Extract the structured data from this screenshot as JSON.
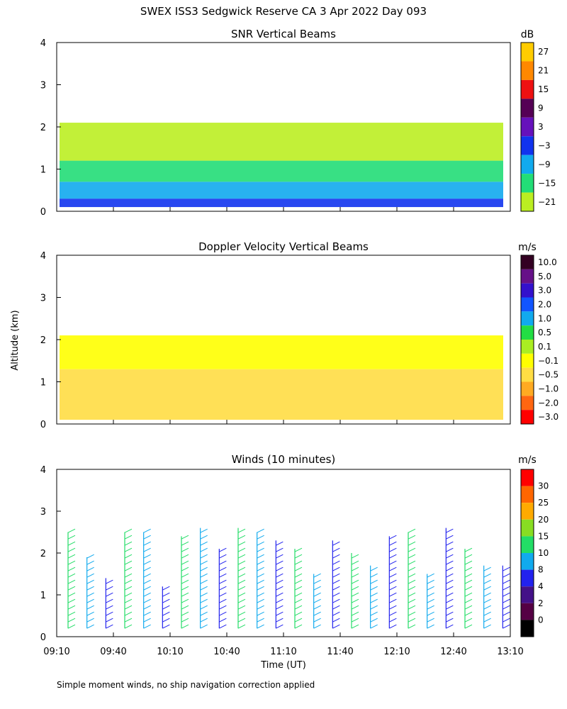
{
  "page_title": "SWEX ISS3 Sedgwick Reserve CA   3 Apr 2022 Day 093",
  "shared_axes": {
    "ylabel": "Altitude (km)",
    "xlabel": "Time (UT)",
    "x_ticks": [
      "09:10",
      "09:40",
      "10:10",
      "10:40",
      "11:10",
      "11:40",
      "12:10",
      "12:40",
      "13:10"
    ],
    "y_ticks": [
      "0",
      "1",
      "2",
      "3",
      "4"
    ]
  },
  "footnote": "Simple moment winds, no ship navigation correction applied",
  "chart_data": [
    {
      "type": "heatmap",
      "title": "SNR Vertical Beams",
      "ylim": [
        0,
        4
      ],
      "colorbar": {
        "unit": "dB",
        "labels": [
          "27",
          "21",
          "15",
          "9",
          "3",
          "−3",
          "−9",
          "−15",
          "−21"
        ],
        "colors": [
          "#ffcc00",
          "#ff8800",
          "#ee1111",
          "#550055",
          "#6611bb",
          "#1133ee",
          "#11aaee",
          "#22dd77",
          "#bbee22"
        ]
      },
      "layers": [
        {
          "from_km": 0.1,
          "to_km": 0.3,
          "level": "-3"
        },
        {
          "from_km": 0.3,
          "to_km": 0.7,
          "level": "-9"
        },
        {
          "from_km": 0.7,
          "to_km": 1.2,
          "level": "-15"
        },
        {
          "from_km": 1.2,
          "to_km": 2.1,
          "level": "-21"
        }
      ]
    },
    {
      "type": "heatmap",
      "title": "Doppler Velocity Vertical Beams",
      "ylim": [
        0,
        4
      ],
      "colorbar": {
        "unit": "m/s",
        "labels": [
          "10.0",
          "5.0",
          "3.0",
          "2.0",
          "1.0",
          "0.5",
          "0.1",
          "−0.1",
          "−0.5",
          "−1.0",
          "−2.0",
          "−3.0"
        ],
        "colors": [
          "#330022",
          "#661188",
          "#3311cc",
          "#1155ff",
          "#11aaee",
          "#22dd44",
          "#aaee22",
          "#ffff00",
          "#ffdd44",
          "#ffaa22",
          "#ff6611",
          "#ff0000"
        ]
      },
      "layers": [
        {
          "from_km": 0.1,
          "to_km": 1.3,
          "level": "-0.5"
        },
        {
          "from_km": 1.3,
          "to_km": 2.1,
          "level": "-0.1"
        }
      ]
    },
    {
      "type": "wind_barbs",
      "title": "Winds (10 minutes)",
      "ylim": [
        0,
        4
      ],
      "colorbar": {
        "unit": "m/s",
        "labels": [
          "30",
          "25",
          "20",
          "15",
          "10",
          "8",
          "4",
          "2",
          "0"
        ],
        "colors": [
          "#ff0000",
          "#ff6600",
          "#ffaa00",
          "#88dd22",
          "#22dd66",
          "#11aaee",
          "#2222ee",
          "#441188",
          "#550044",
          "#000000"
        ]
      },
      "profiles": [
        {
          "time": "09:16",
          "top_km": 2.5
        },
        {
          "time": "09:26",
          "top_km": 1.9
        },
        {
          "time": "09:36",
          "top_km": 1.4
        },
        {
          "time": "09:46",
          "top_km": 2.5
        },
        {
          "time": "09:56",
          "top_km": 2.5
        },
        {
          "time": "10:06",
          "top_km": 1.2
        },
        {
          "time": "10:16",
          "top_km": 2.4
        },
        {
          "time": "10:26",
          "top_km": 2.6
        },
        {
          "time": "10:36",
          "top_km": 2.1
        },
        {
          "time": "10:46",
          "top_km": 2.6
        },
        {
          "time": "10:56",
          "top_km": 2.5
        },
        {
          "time": "11:06",
          "top_km": 2.3
        },
        {
          "time": "11:16",
          "top_km": 2.1
        },
        {
          "time": "11:26",
          "top_km": 1.5
        },
        {
          "time": "11:36",
          "top_km": 2.3
        },
        {
          "time": "11:46",
          "top_km": 2.0
        },
        {
          "time": "11:56",
          "top_km": 1.7
        },
        {
          "time": "12:06",
          "top_km": 2.4
        },
        {
          "time": "12:16",
          "top_km": 2.5
        },
        {
          "time": "12:26",
          "top_km": 1.5
        },
        {
          "time": "12:36",
          "top_km": 2.6
        },
        {
          "time": "12:46",
          "top_km": 2.1
        },
        {
          "time": "12:56",
          "top_km": 1.7
        },
        {
          "time": "13:06",
          "top_km": 1.7
        }
      ]
    }
  ]
}
